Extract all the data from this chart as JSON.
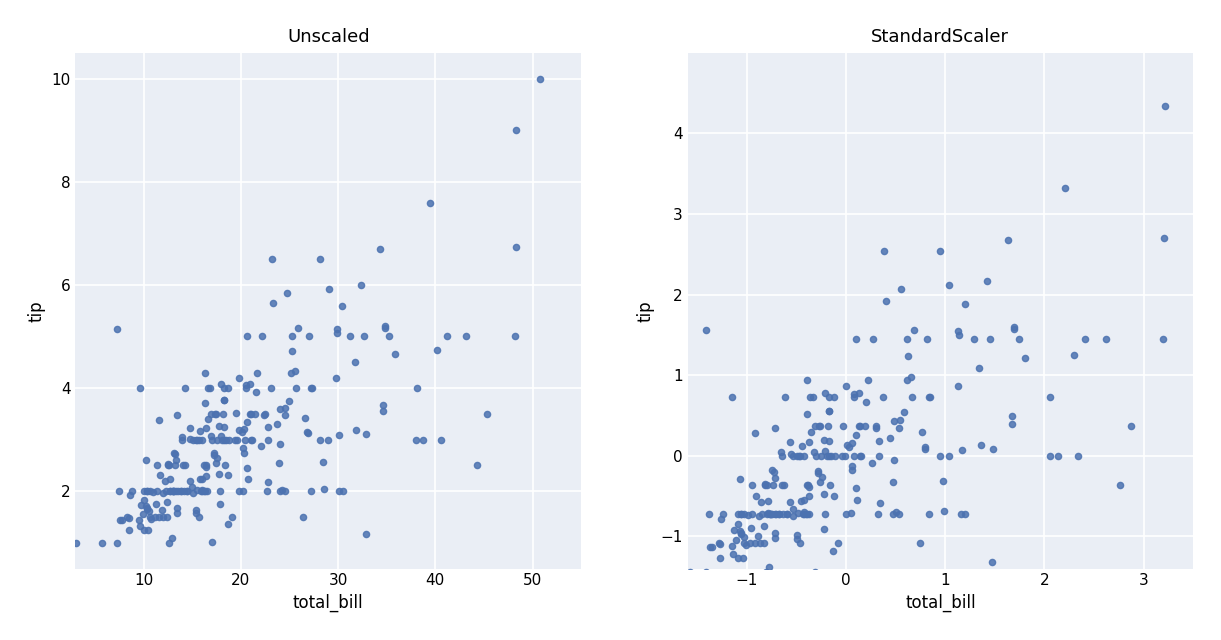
{
  "title_left": "Unscaled",
  "title_right": "StandardScaler",
  "xlabel": "total_bill",
  "ylabel": "tip",
  "dot_color": "#4c72b0",
  "dot_alpha": 0.85,
  "dot_size": 20,
  "bg_color": "#eaeef5",
  "fig_bg_color": "#ffffff",
  "grid_color": "#ffffff",
  "xlim_left": [
    3,
    55
  ],
  "ylim_left": [
    0.5,
    10.5
  ],
  "xlim_right": [
    -1.6,
    3.5
  ],
  "ylim_right": [
    -1.4,
    5.0
  ],
  "xticks_left": [
    10,
    20,
    30,
    40,
    50
  ],
  "yticks_left": [
    2,
    4,
    6,
    8,
    10
  ],
  "xticks_right": [
    -1,
    0,
    1,
    2,
    3
  ],
  "yticks_right": [
    -1,
    0,
    1,
    2,
    3,
    4
  ],
  "figsize": [
    12.21,
    6.4
  ],
  "dpi": 100,
  "title_fontsize": 13,
  "label_fontsize": 12,
  "tick_fontsize": 11
}
